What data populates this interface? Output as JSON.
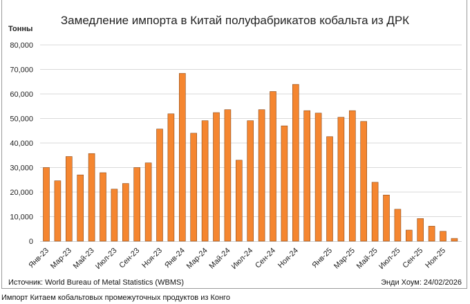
{
  "chart_data": {
    "type": "bar",
    "title": "Замедление импорта в Китай полуфабрикатов кобальта из ДРК",
    "ylabel": "Тонны",
    "xlabel": "",
    "ylim": [
      0,
      80000
    ],
    "yticks": [
      "0",
      "10,000",
      "20,000",
      "30,000",
      "40,000",
      "50,000",
      "60,000",
      "70,000",
      "80,000"
    ],
    "grid": true,
    "bar_color": "#f58630",
    "tick_labels": [
      "Янв-23",
      "",
      "Мар-23",
      "",
      "Май-23",
      "",
      "Июл-23",
      "",
      "Сен-23",
      "",
      "Ноя-23",
      "",
      "Янв-24",
      "",
      "Мар-24",
      "",
      "Май-24",
      "",
      "Июл-24",
      "",
      "Сен-24",
      "",
      "Ноя-24",
      "",
      "",
      "Янв-25",
      "",
      "Мар-25",
      "",
      "Май-25",
      "",
      "Июл-25",
      "",
      "Сен-25",
      "",
      "Ноя-25",
      ""
    ],
    "values": [
      30000,
      24600,
      34500,
      27000,
      35700,
      27900,
      21200,
      23500,
      30000,
      31900,
      45700,
      51900,
      68400,
      44000,
      49100,
      52400,
      53600,
      33000,
      49100,
      53600,
      61000,
      47000,
      63900,
      53200,
      52200,
      42600,
      50500,
      53200,
      48800,
      24000,
      18800,
      13000,
      4500,
      9200,
      6100,
      4000,
      1100
    ]
  },
  "source": "Источник: World Bureau of Metal Statistics (WBMS)",
  "author": "Энди Хоум: 24/02/2026",
  "caption": "Импорт Китаем кобальтовых промежуточных продуктов из Конго"
}
